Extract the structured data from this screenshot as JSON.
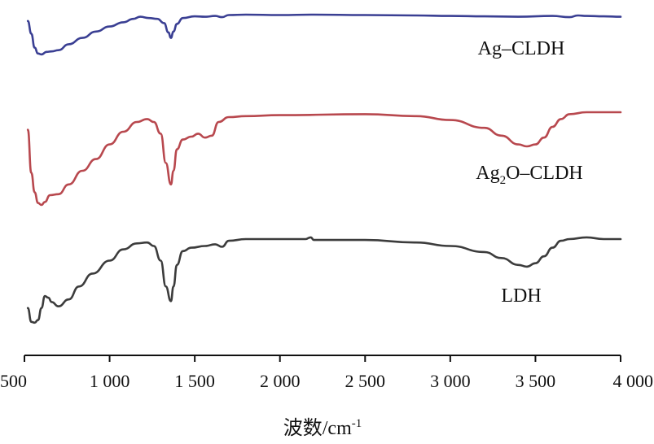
{
  "chart_data": {
    "type": "line",
    "title": "",
    "xlabel_main": "波数/cm",
    "xlabel_sup": "-1",
    "ylabel": "",
    "xlim": [
      500,
      4000
    ],
    "ticks": [
      {
        "value": 500,
        "label": "500"
      },
      {
        "value": 1000,
        "label": "1 000"
      },
      {
        "value": 1500,
        "label": "1 500"
      },
      {
        "value": 2000,
        "label": "2 000"
      },
      {
        "value": 2500,
        "label": "2 500"
      },
      {
        "value": 3000,
        "label": "3 000"
      },
      {
        "value": 3500,
        "label": "3 500"
      },
      {
        "value": 4000,
        "label": "4 000"
      }
    ],
    "grid": false,
    "series": [
      {
        "name": "Ag–CLDH",
        "label_parts": [
          "Ag–CLDH"
        ],
        "color": "#3a3f93",
        "x": [
          520,
          540,
          560,
          580,
          600,
          630,
          660,
          700,
          760,
          840,
          920,
          1000,
          1080,
          1140,
          1180,
          1230,
          1280,
          1320,
          1345,
          1360,
          1375,
          1395,
          1430,
          1500,
          1560,
          1620,
          1660,
          1700,
          1800,
          2000,
          2200,
          2500,
          2800,
          3000,
          3200,
          3400,
          3600,
          3700,
          3750,
          3800,
          3900,
          4000
        ],
        "y": [
          0.15,
          0.45,
          0.78,
          0.92,
          0.94,
          0.88,
          0.87,
          0.84,
          0.7,
          0.55,
          0.4,
          0.28,
          0.18,
          0.1,
          0.05,
          0.08,
          0.1,
          0.2,
          0.42,
          0.55,
          0.4,
          0.22,
          0.08,
          0.04,
          0.05,
          0.03,
          0.06,
          0.01,
          0.0,
          0.01,
          0.0,
          0.01,
          0.02,
          0.03,
          0.04,
          0.05,
          0.03,
          0.06,
          0.02,
          0.03,
          0.04,
          0.05
        ]
      },
      {
        "name": "Ag2O–CLDH",
        "label_parts": [
          "Ag",
          "2",
          "O–CLDH"
        ],
        "color": "#b8484e",
        "x": [
          520,
          540,
          560,
          580,
          600,
          620,
          650,
          700,
          760,
          840,
          920,
          1000,
          1080,
          1160,
          1220,
          1260,
          1300,
          1330,
          1360,
          1375,
          1395,
          1430,
          1480,
          1520,
          1560,
          1600,
          1640,
          1700,
          1800,
          2000,
          2500,
          2800,
          3000,
          3200,
          3300,
          3400,
          3450,
          3500,
          3550,
          3600,
          3650,
          3700,
          3800,
          3900,
          4000
        ],
        "y": [
          0.18,
          0.62,
          0.82,
          0.93,
          0.95,
          0.92,
          0.85,
          0.84,
          0.74,
          0.6,
          0.48,
          0.33,
          0.2,
          0.1,
          0.07,
          0.1,
          0.22,
          0.52,
          0.74,
          0.6,
          0.38,
          0.28,
          0.25,
          0.22,
          0.26,
          0.24,
          0.1,
          0.05,
          0.04,
          0.03,
          0.02,
          0.04,
          0.08,
          0.16,
          0.24,
          0.33,
          0.35,
          0.33,
          0.26,
          0.15,
          0.07,
          0.02,
          0.0,
          0.0,
          0.0
        ]
      },
      {
        "name": "LDH",
        "label_parts": [
          "LDH"
        ],
        "color": "#3c3c3c",
        "x": [
          520,
          540,
          560,
          580,
          600,
          620,
          640,
          660,
          700,
          760,
          820,
          900,
          1000,
          1080,
          1160,
          1220,
          1260,
          1300,
          1330,
          1360,
          1375,
          1395,
          1430,
          1480,
          1560,
          1620,
          1660,
          1700,
          1800,
          2000,
          2150,
          2180,
          2200,
          2500,
          2800,
          3000,
          3200,
          3300,
          3400,
          3450,
          3500,
          3550,
          3600,
          3650,
          3700,
          3800,
          3900,
          4000
        ],
        "y": [
          0.8,
          0.96,
          0.97,
          0.94,
          0.8,
          0.66,
          0.68,
          0.73,
          0.78,
          0.7,
          0.55,
          0.4,
          0.25,
          0.12,
          0.05,
          0.04,
          0.08,
          0.25,
          0.55,
          0.72,
          0.55,
          0.3,
          0.14,
          0.1,
          0.08,
          0.06,
          0.09,
          0.02,
          0.0,
          0.0,
          0.0,
          -0.02,
          0.01,
          0.01,
          0.04,
          0.08,
          0.15,
          0.22,
          0.3,
          0.32,
          0.28,
          0.2,
          0.1,
          0.02,
          0.0,
          -0.02,
          0.0,
          0.0
        ]
      }
    ]
  }
}
